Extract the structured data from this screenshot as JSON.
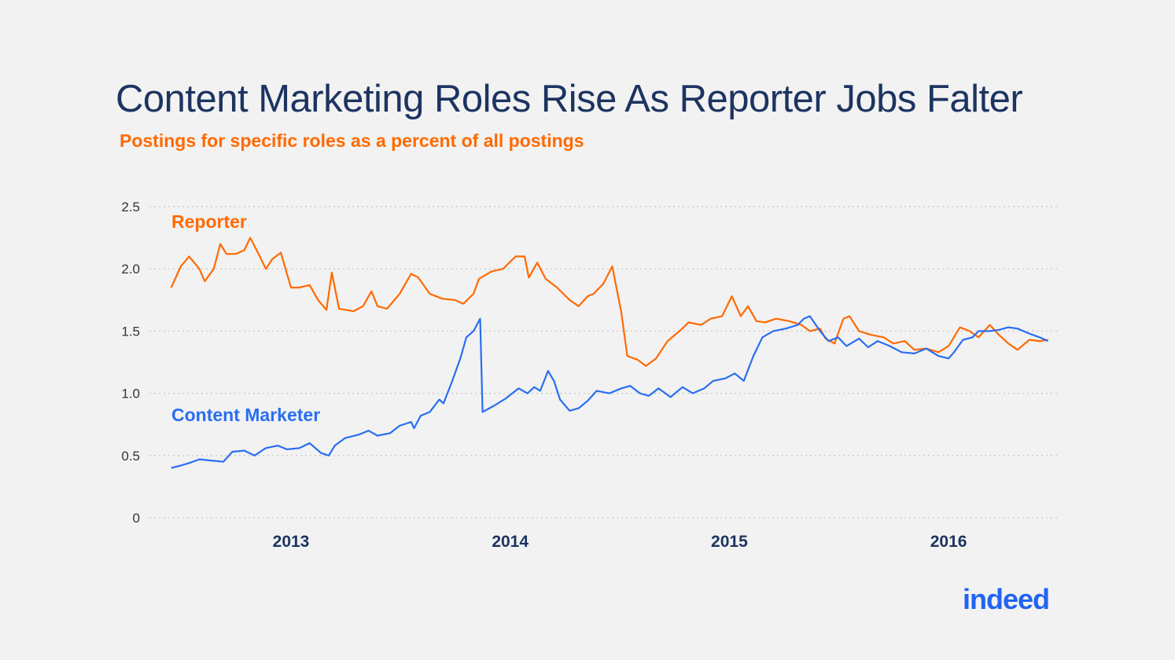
{
  "title": "Content Marketing Roles Rise As Reporter Jobs Falter",
  "subtitle": "Postings for specific roles as a percent of all postings",
  "logo": "indeed",
  "colors": {
    "reporter": "#ff6a00",
    "content_marketer": "#2a6ef0",
    "title": "#1d3461",
    "grid": "#cccccc"
  },
  "chart_data": {
    "type": "line",
    "title": "Content Marketing Roles Rise As Reporter Jobs Falter",
    "subtitle": "Postings for specific roles as a percent of all postings",
    "xlabel": "",
    "ylabel": "",
    "ylim": [
      0,
      2.5
    ],
    "yticks": [
      0,
      0.5,
      1.0,
      1.5,
      2.0,
      2.5
    ],
    "ytick_labels": [
      "0",
      "0.5",
      "1.0",
      "1.5",
      "2.0",
      "2.5"
    ],
    "xlim": [
      "2012-06-15",
      "2016-06-20"
    ],
    "xticks": [
      "2013-01-01",
      "2014-01-01",
      "2015-01-01",
      "2016-01-01"
    ],
    "xtick_labels": [
      "2013",
      "2014",
      "2015",
      "2016"
    ],
    "grid": "horizontal dotted",
    "legend": "inline labels",
    "series": [
      {
        "name": "Reporter",
        "color": "#ff6a00",
        "points": [
          [
            "2012-06-15",
            1.85
          ],
          [
            "2012-07-01",
            2.02
          ],
          [
            "2012-07-15",
            2.1
          ],
          [
            "2012-08-01",
            2.0
          ],
          [
            "2012-08-10",
            1.9
          ],
          [
            "2012-08-25",
            2.0
          ],
          [
            "2012-09-05",
            2.2
          ],
          [
            "2012-09-15",
            2.12
          ],
          [
            "2012-10-01",
            2.12
          ],
          [
            "2012-10-15",
            2.15
          ],
          [
            "2012-10-25",
            2.25
          ],
          [
            "2012-11-10",
            2.1
          ],
          [
            "2012-11-20",
            2.0
          ],
          [
            "2012-12-01",
            2.08
          ],
          [
            "2012-12-15",
            2.13
          ],
          [
            "2013-01-01",
            1.85
          ],
          [
            "2013-01-15",
            1.85
          ],
          [
            "2013-02-01",
            1.87
          ],
          [
            "2013-02-15",
            1.75
          ],
          [
            "2013-03-01",
            1.67
          ],
          [
            "2013-03-10",
            1.97
          ],
          [
            "2013-03-22",
            1.68
          ],
          [
            "2013-04-15",
            1.66
          ],
          [
            "2013-05-01",
            1.7
          ],
          [
            "2013-05-15",
            1.82
          ],
          [
            "2013-05-25",
            1.7
          ],
          [
            "2013-06-10",
            1.68
          ],
          [
            "2013-07-01",
            1.8
          ],
          [
            "2013-07-20",
            1.96
          ],
          [
            "2013-08-01",
            1.93
          ],
          [
            "2013-08-20",
            1.8
          ],
          [
            "2013-09-10",
            1.76
          ],
          [
            "2013-10-01",
            1.75
          ],
          [
            "2013-10-15",
            1.72
          ],
          [
            "2013-11-01",
            1.8
          ],
          [
            "2013-11-10",
            1.92
          ],
          [
            "2013-12-01",
            1.98
          ],
          [
            "2013-12-20",
            2.0
          ],
          [
            "2014-01-10",
            2.1
          ],
          [
            "2014-01-25",
            2.1
          ],
          [
            "2014-02-01",
            1.93
          ],
          [
            "2014-02-15",
            2.05
          ],
          [
            "2014-03-01",
            1.92
          ],
          [
            "2014-03-20",
            1.85
          ],
          [
            "2014-04-10",
            1.75
          ],
          [
            "2014-04-25",
            1.7
          ],
          [
            "2014-05-10",
            1.78
          ],
          [
            "2014-05-20",
            1.8
          ],
          [
            "2014-06-05",
            1.88
          ],
          [
            "2014-06-20",
            2.02
          ],
          [
            "2014-07-05",
            1.65
          ],
          [
            "2014-07-15",
            1.3
          ],
          [
            "2014-08-01",
            1.27
          ],
          [
            "2014-08-15",
            1.22
          ],
          [
            "2014-09-01",
            1.28
          ],
          [
            "2014-09-20",
            1.42
          ],
          [
            "2014-10-10",
            1.5
          ],
          [
            "2014-10-25",
            1.57
          ],
          [
            "2014-11-15",
            1.55
          ],
          [
            "2014-12-01",
            1.6
          ],
          [
            "2014-12-20",
            1.62
          ],
          [
            "2015-01-05",
            1.78
          ],
          [
            "2015-01-20",
            1.62
          ],
          [
            "2015-02-01",
            1.7
          ],
          [
            "2015-02-15",
            1.58
          ],
          [
            "2015-03-01",
            1.57
          ],
          [
            "2015-03-20",
            1.6
          ],
          [
            "2015-04-10",
            1.58
          ],
          [
            "2015-05-01",
            1.55
          ],
          [
            "2015-05-15",
            1.5
          ],
          [
            "2015-06-01",
            1.52
          ],
          [
            "2015-06-10",
            1.44
          ],
          [
            "2015-06-25",
            1.4
          ],
          [
            "2015-07-10",
            1.6
          ],
          [
            "2015-07-20",
            1.62
          ],
          [
            "2015-08-05",
            1.5
          ],
          [
            "2015-08-25",
            1.47
          ],
          [
            "2015-09-15",
            1.45
          ],
          [
            "2015-10-01",
            1.4
          ],
          [
            "2015-10-20",
            1.42
          ],
          [
            "2015-11-05",
            1.35
          ],
          [
            "2015-11-25",
            1.36
          ],
          [
            "2015-12-15",
            1.33
          ],
          [
            "2016-01-01",
            1.38
          ],
          [
            "2016-01-20",
            1.53
          ],
          [
            "2016-02-05",
            1.5
          ],
          [
            "2016-02-20",
            1.45
          ],
          [
            "2016-03-10",
            1.55
          ],
          [
            "2016-03-25",
            1.47
          ],
          [
            "2016-04-10",
            1.4
          ],
          [
            "2016-04-25",
            1.35
          ],
          [
            "2016-05-15",
            1.43
          ],
          [
            "2016-06-01",
            1.42
          ],
          [
            "2016-06-15",
            1.43
          ]
        ]
      },
      {
        "name": "Content Marketer",
        "color": "#2a6ef0",
        "points": [
          [
            "2012-06-15",
            0.4
          ],
          [
            "2012-07-01",
            0.42
          ],
          [
            "2012-07-15",
            0.44
          ],
          [
            "2012-08-01",
            0.47
          ],
          [
            "2012-08-20",
            0.46
          ],
          [
            "2012-09-10",
            0.45
          ],
          [
            "2012-09-25",
            0.53
          ],
          [
            "2012-10-15",
            0.54
          ],
          [
            "2012-11-01",
            0.5
          ],
          [
            "2012-11-20",
            0.56
          ],
          [
            "2012-12-10",
            0.58
          ],
          [
            "2012-12-25",
            0.55
          ],
          [
            "2013-01-15",
            0.56
          ],
          [
            "2013-02-01",
            0.6
          ],
          [
            "2013-02-20",
            0.52
          ],
          [
            "2013-03-05",
            0.5
          ],
          [
            "2013-03-15",
            0.58
          ],
          [
            "2013-04-01",
            0.64
          ],
          [
            "2013-04-25",
            0.67
          ],
          [
            "2013-05-10",
            0.7
          ],
          [
            "2013-05-25",
            0.66
          ],
          [
            "2013-06-15",
            0.68
          ],
          [
            "2013-07-01",
            0.74
          ],
          [
            "2013-07-20",
            0.77
          ],
          [
            "2013-07-25",
            0.72
          ],
          [
            "2013-08-05",
            0.82
          ],
          [
            "2013-08-20",
            0.85
          ],
          [
            "2013-09-05",
            0.95
          ],
          [
            "2013-09-12",
            0.92
          ],
          [
            "2013-09-25",
            1.08
          ],
          [
            "2013-10-10",
            1.28
          ],
          [
            "2013-10-20",
            1.45
          ],
          [
            "2013-11-01",
            1.5
          ],
          [
            "2013-11-12",
            1.6
          ],
          [
            "2013-11-16",
            0.85
          ],
          [
            "2013-12-05",
            0.9
          ],
          [
            "2013-12-25",
            0.96
          ],
          [
            "2014-01-15",
            1.04
          ],
          [
            "2014-01-30",
            1.0
          ],
          [
            "2014-02-10",
            1.05
          ],
          [
            "2014-02-20",
            1.02
          ],
          [
            "2014-03-05",
            1.18
          ],
          [
            "2014-03-15",
            1.1
          ],
          [
            "2014-03-25",
            0.95
          ],
          [
            "2014-04-10",
            0.86
          ],
          [
            "2014-04-25",
            0.88
          ],
          [
            "2014-05-10",
            0.94
          ],
          [
            "2014-05-25",
            1.02
          ],
          [
            "2014-06-15",
            1.0
          ],
          [
            "2014-07-05",
            1.04
          ],
          [
            "2014-07-20",
            1.06
          ],
          [
            "2014-08-05",
            1.0
          ],
          [
            "2014-08-20",
            0.98
          ],
          [
            "2014-09-05",
            1.04
          ],
          [
            "2014-09-25",
            0.97
          ],
          [
            "2014-10-15",
            1.05
          ],
          [
            "2014-11-01",
            1.0
          ],
          [
            "2014-11-20",
            1.04
          ],
          [
            "2014-12-05",
            1.1
          ],
          [
            "2014-12-25",
            1.12
          ],
          [
            "2015-01-10",
            1.16
          ],
          [
            "2015-01-25",
            1.1
          ],
          [
            "2015-02-10",
            1.3
          ],
          [
            "2015-02-25",
            1.45
          ],
          [
            "2015-03-15",
            1.5
          ],
          [
            "2015-04-05",
            1.52
          ],
          [
            "2015-04-25",
            1.55
          ],
          [
            "2015-05-05",
            1.6
          ],
          [
            "2015-05-15",
            1.62
          ],
          [
            "2015-06-01",
            1.5
          ],
          [
            "2015-06-15",
            1.42
          ],
          [
            "2015-07-01",
            1.45
          ],
          [
            "2015-07-15",
            1.38
          ],
          [
            "2015-08-05",
            1.44
          ],
          [
            "2015-08-20",
            1.37
          ],
          [
            "2015-09-05",
            1.42
          ],
          [
            "2015-09-25",
            1.38
          ],
          [
            "2015-10-15",
            1.33
          ],
          [
            "2015-11-05",
            1.32
          ],
          [
            "2015-11-25",
            1.36
          ],
          [
            "2015-12-15",
            1.3
          ],
          [
            "2016-01-01",
            1.28
          ],
          [
            "2016-01-10",
            1.33
          ],
          [
            "2016-01-25",
            1.43
          ],
          [
            "2016-02-10",
            1.45
          ],
          [
            "2016-02-20",
            1.5
          ],
          [
            "2016-03-10",
            1.5
          ],
          [
            "2016-03-25",
            1.51
          ],
          [
            "2016-04-10",
            1.53
          ],
          [
            "2016-04-25",
            1.52
          ],
          [
            "2016-05-15",
            1.48
          ],
          [
            "2016-06-01",
            1.45
          ],
          [
            "2016-06-15",
            1.42
          ]
        ]
      }
    ]
  }
}
